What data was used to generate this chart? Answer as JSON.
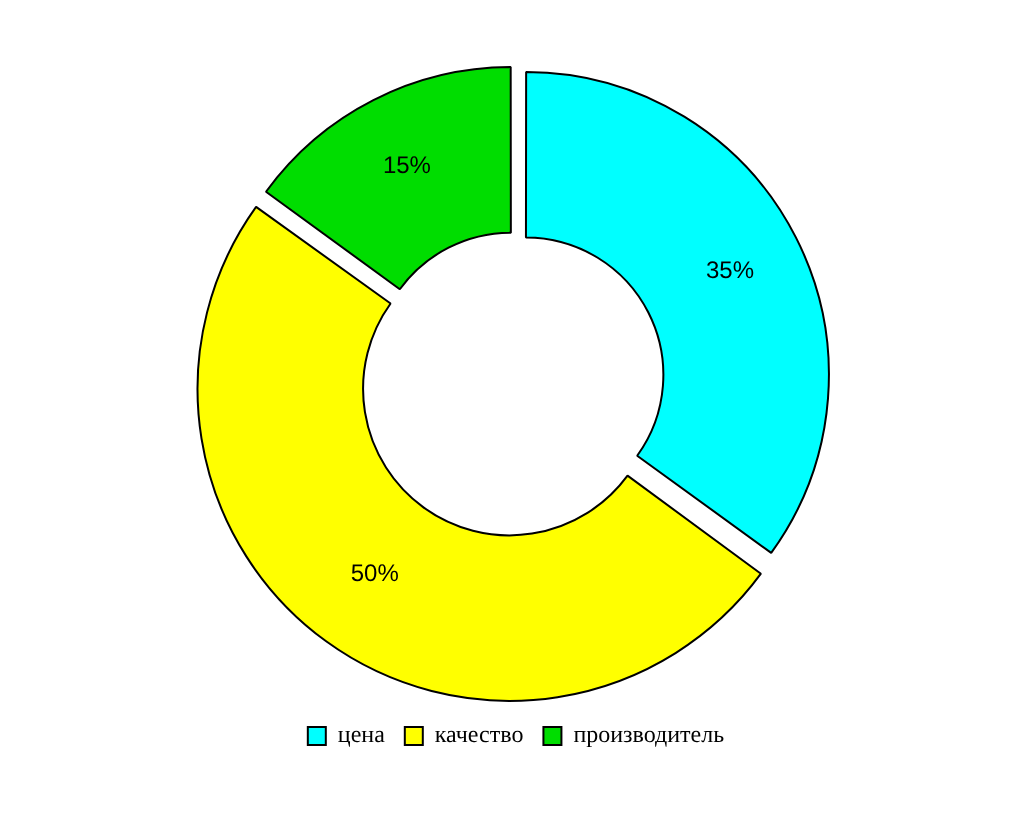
{
  "chart_data": {
    "type": "donut",
    "categories": [
      "цена",
      "качество",
      "производитель"
    ],
    "values": [
      35,
      50,
      15
    ],
    "colors": [
      "#00ffff",
      "#ffff00",
      "#00dd00"
    ],
    "value_labels": [
      "35%",
      "50%",
      "15%"
    ],
    "legend": "bottom"
  }
}
